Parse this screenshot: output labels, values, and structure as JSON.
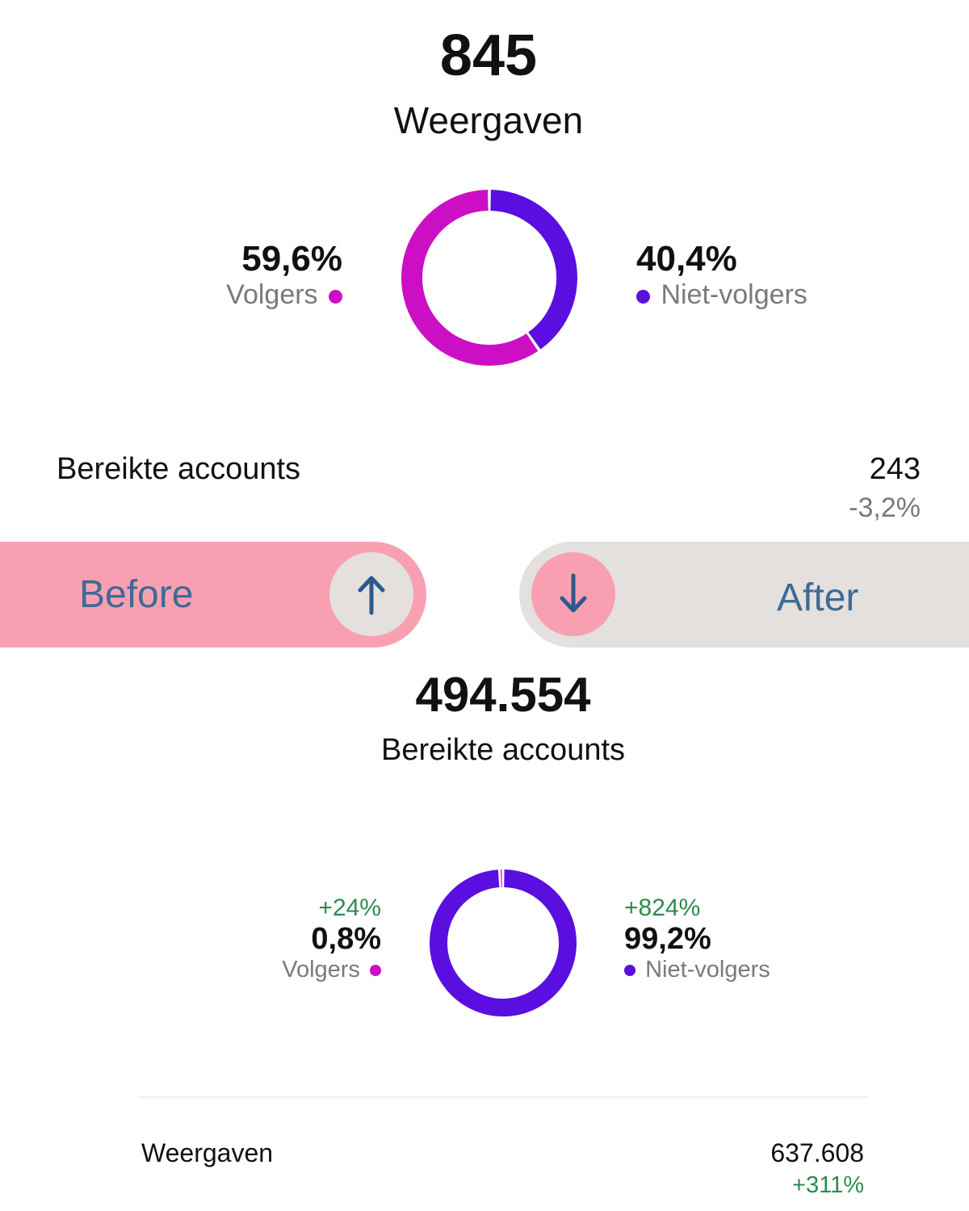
{
  "top": {
    "views_count": "845",
    "views_label": "Weergaven",
    "followers_pct": "59,6%",
    "followers_label": "Volgers",
    "nonfollowers_pct": "40,4%",
    "nonfollowers_label": "Niet-volgers",
    "reached_label": "Bereikte accounts",
    "reached_value": "243",
    "reached_change": "-3,2%"
  },
  "compare": {
    "before_label": "Before",
    "after_label": "After",
    "up_icon": "arrow-up-icon",
    "down_icon": "arrow-down-icon"
  },
  "bottom": {
    "reached_count": "494.554",
    "reached_label": "Bereikte accounts",
    "followers_change": "+24%",
    "followers_pct": "0,8%",
    "followers_label": "Volgers",
    "nonfollowers_change": "+824%",
    "nonfollowers_pct": "99,2%",
    "nonfollowers_label": "Niet-volgers",
    "views_label": "Weergaven",
    "views_value": "637.608",
    "views_change": "+311%"
  },
  "chart_data": [
    {
      "type": "pie",
      "series": [
        {
          "name": "Volgers",
          "value": 59.6,
          "color": "#cc0fc4"
        },
        {
          "name": "Niet-volgers",
          "value": 40.4,
          "color": "#5a0fe0"
        }
      ]
    },
    {
      "type": "pie",
      "series": [
        {
          "name": "Volgers",
          "value": 0.8,
          "color": "#cc0fc4"
        },
        {
          "name": "Niet-volgers",
          "value": 99.2,
          "color": "#5a0fe0"
        }
      ]
    }
  ],
  "colors": {
    "followers": "#cc0fc4",
    "nonfollowers": "#5a0fe0",
    "positive": "#2e8b4e",
    "before_bg": "#f8a0b2",
    "after_bg": "#e4e0dd",
    "label_blue": "#3e6a95"
  }
}
